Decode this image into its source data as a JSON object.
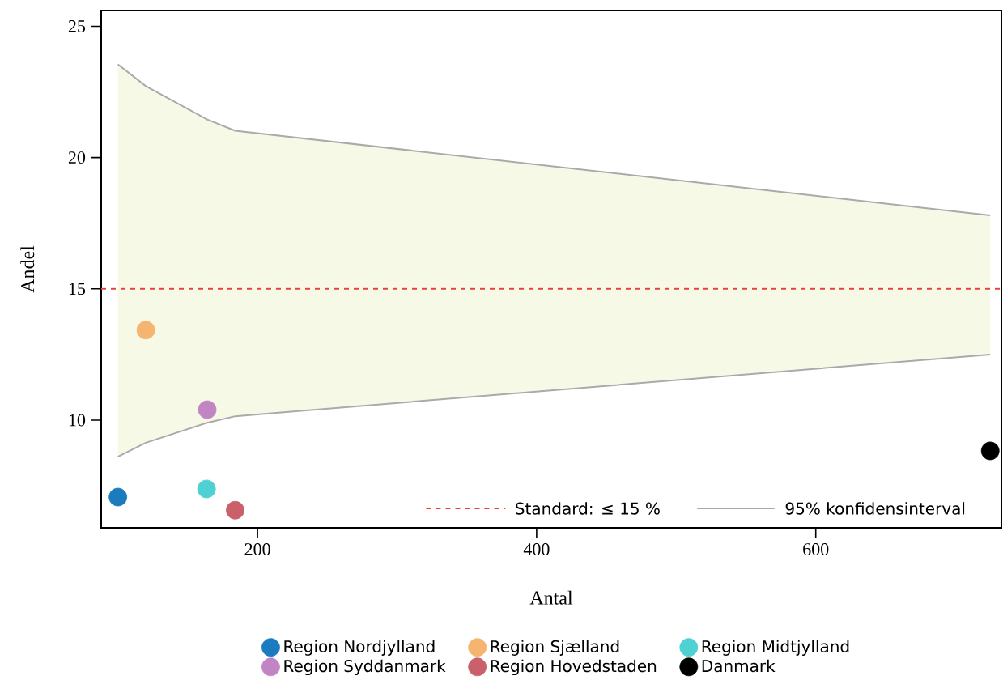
{
  "chart_data": {
    "type": "scatter",
    "xlabel": "Antal",
    "ylabel": "Andel",
    "xlim": [
      88,
      733
    ],
    "ylim": [
      5.9,
      25.6
    ],
    "xticks": [
      200,
      400,
      600
    ],
    "yticks": [
      10,
      15,
      20,
      25
    ],
    "legend": "bottom",
    "series": [
      {
        "name": "Region Nordjylland",
        "color": "#1a7bbf",
        "marker": "circle",
        "x": [
          100
        ],
        "values": [
          7.07
        ]
      },
      {
        "name": "Region Sjælland",
        "color": "#f5b46f",
        "marker": "circle",
        "x": [
          120
        ],
        "values": [
          13.43
        ]
      },
      {
        "name": "Region Midtjylland",
        "color": "#4fd1d3",
        "marker": "circle",
        "x": [
          163.5
        ],
        "values": [
          7.38
        ]
      },
      {
        "name": "Region Syddanmark",
        "color": "#c285c4",
        "marker": "circle",
        "x": [
          164
        ],
        "values": [
          10.4
        ]
      },
      {
        "name": "Region Hovedstaden",
        "color": "#c9606a",
        "marker": "circle",
        "x": [
          184
        ],
        "values": [
          6.57
        ]
      },
      {
        "name": "Danmark",
        "color": "#000000",
        "marker": "circle",
        "x": [
          725
        ],
        "values": [
          8.83
        ]
      },
      {
        "name": "95% konfidensinterval",
        "type": "line",
        "color": "#aaaaaa",
        "x": [
          100,
          120,
          164,
          184,
          725
        ],
        "values": [
          null,
          null,
          null,
          null,
          null
        ],
        "lower": [
          8.61,
          9.14,
          9.9,
          10.15,
          12.5
        ],
        "upper": [
          23.55,
          22.72,
          21.45,
          21.02,
          17.8
        ]
      },
      {
        "type": "line",
        "marker": "none",
        "color": "#aaaaaa",
        "x": [
          100,
          120,
          164,
          184,
          725
        ],
        "values": [
          23.55,
          22.72,
          21.45,
          21.02,
          17.8
        ]
      },
      {
        "type": "line",
        "marker": "none",
        "color": "#aaaaaa",
        "x": [
          100,
          120,
          164,
          184,
          725
        ],
        "values": [
          8.61,
          9.14,
          9.9,
          10.15,
          12.5
        ]
      }
    ],
    "ref_lines": [
      {
        "axis": "y",
        "value": 15,
        "label": "Standard: ≤ 15 %",
        "color": "#e8413a",
        "line_style": "dashed"
      }
    ]
  }
}
